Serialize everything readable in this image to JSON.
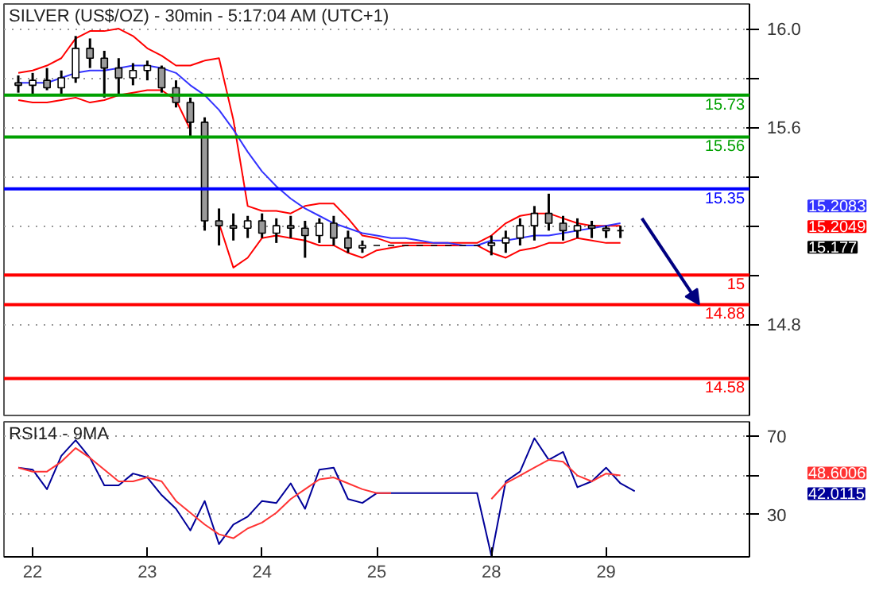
{
  "chart_data": [
    {
      "type": "candlestick",
      "title": "SILVER (US$/OZ) - 30min - 5:17:04 AM (UTC+1)",
      "categories": [
        null,
        null,
        null,
        null,
        null,
        null,
        null,
        null,
        null,
        null,
        null,
        null,
        null,
        null,
        null,
        null,
        null,
        null,
        null,
        null,
        null,
        null,
        null,
        null,
        null,
        null,
        null,
        null,
        null,
        null,
        null,
        null,
        null,
        null,
        null,
        null,
        null,
        null,
        null,
        null,
        null,
        null,
        null,
        null
      ],
      "ohlc": [
        [
          15.78,
          15.81,
          15.74,
          15.77
        ],
        [
          15.77,
          15.82,
          15.73,
          15.79
        ],
        [
          15.79,
          15.84,
          15.75,
          15.76
        ],
        [
          15.76,
          15.83,
          15.73,
          15.8
        ],
        [
          15.8,
          15.97,
          15.78,
          15.92
        ],
        [
          15.92,
          15.96,
          15.84,
          15.88
        ],
        [
          15.88,
          15.91,
          15.72,
          15.84
        ],
        [
          15.84,
          15.88,
          15.73,
          15.8
        ],
        [
          15.8,
          15.86,
          15.77,
          15.83
        ],
        [
          15.83,
          15.87,
          15.79,
          15.85
        ],
        [
          15.84,
          15.85,
          15.74,
          15.76
        ],
        [
          15.76,
          15.79,
          15.68,
          15.7
        ],
        [
          15.7,
          15.72,
          15.56,
          15.62
        ],
        [
          15.62,
          15.64,
          15.18,
          15.22
        ],
        [
          15.22,
          15.27,
          15.12,
          15.2
        ],
        [
          15.2,
          15.25,
          15.14,
          15.19
        ],
        [
          15.19,
          15.24,
          15.15,
          15.22
        ],
        [
          15.22,
          15.25,
          15.15,
          15.17
        ],
        [
          15.17,
          15.23,
          15.13,
          15.2
        ],
        [
          15.2,
          15.24,
          15.15,
          15.19
        ],
        [
          15.19,
          15.22,
          15.07,
          15.16
        ],
        [
          15.16,
          15.23,
          15.13,
          15.21
        ],
        [
          15.21,
          15.24,
          15.12,
          15.15
        ],
        [
          15.15,
          15.18,
          15.09,
          15.11
        ],
        [
          15.11,
          15.14,
          15.09,
          15.12
        ],
        [
          15.12,
          15.12,
          15.12,
          15.12
        ],
        [
          15.12,
          15.12,
          15.12,
          15.12
        ],
        [
          15.12,
          15.12,
          15.12,
          15.12
        ],
        [
          15.12,
          15.12,
          15.12,
          15.12
        ],
        [
          15.12,
          15.12,
          15.12,
          15.12
        ],
        [
          15.12,
          15.12,
          15.12,
          15.12
        ],
        [
          15.12,
          15.12,
          15.12,
          15.12
        ],
        [
          15.12,
          15.12,
          15.12,
          15.12
        ],
        [
          15.12,
          15.16,
          15.08,
          15.13
        ],
        [
          15.13,
          15.18,
          15.09,
          15.15
        ],
        [
          15.15,
          15.23,
          15.12,
          15.2
        ],
        [
          15.2,
          15.28,
          15.14,
          15.25
        ],
        [
          15.25,
          15.33,
          15.18,
          15.21
        ],
        [
          15.21,
          15.24,
          15.14,
          15.18
        ],
        [
          15.18,
          15.23,
          15.15,
          15.2
        ],
        [
          15.2,
          15.22,
          15.15,
          15.19
        ],
        [
          15.19,
          15.2,
          15.15,
          15.18
        ],
        [
          15.18,
          15.2,
          15.15,
          15.18
        ],
        null
      ],
      "color": "#000000",
      "series": [
        {
          "type": "line",
          "color": "#ff0000",
          "values": [
            15.82,
            15.83,
            15.85,
            15.88,
            15.96,
            15.99,
            15.99,
            16.0,
            15.97,
            15.92,
            15.89,
            15.85,
            15.85,
            15.87,
            15.88,
            15.63,
            15.28,
            15.26,
            15.26,
            15.25,
            15.28,
            15.29,
            15.29,
            15.23,
            15.16,
            15.15,
            15.13,
            15.13,
            15.13,
            15.13,
            15.13,
            15.13,
            15.13,
            15.16,
            15.21,
            15.24,
            15.25,
            15.25,
            15.23,
            15.21,
            15.2,
            15.2,
            15.2,
            null
          ]
        },
        {
          "type": "line",
          "color": "#ff0000",
          "values": [
            15.71,
            15.7,
            15.7,
            15.71,
            15.72,
            15.7,
            15.71,
            15.73,
            15.74,
            15.75,
            15.75,
            15.71,
            15.59,
            null,
            15.21,
            15.03,
            15.07,
            15.15,
            15.16,
            15.15,
            15.14,
            15.12,
            15.12,
            15.09,
            15.07,
            15.1,
            15.11,
            15.12,
            15.12,
            15.12,
            15.12,
            15.12,
            15.12,
            15.09,
            15.07,
            15.1,
            15.11,
            15.13,
            15.13,
            15.15,
            15.14,
            15.13,
            15.13,
            null
          ]
        },
        {
          "type": "line",
          "color": "#3333ff",
          "values": [
            15.78,
            15.78,
            15.78,
            15.8,
            15.82,
            15.83,
            15.83,
            15.84,
            15.85,
            15.85,
            15.84,
            15.82,
            15.77,
            15.73,
            15.67,
            15.59,
            15.5,
            15.42,
            15.36,
            15.31,
            15.27,
            15.24,
            15.21,
            15.19,
            15.17,
            15.16,
            15.15,
            15.15,
            15.14,
            15.13,
            15.13,
            15.12,
            15.12,
            15.14,
            15.14,
            15.15,
            15.16,
            15.16,
            15.17,
            15.18,
            15.19,
            15.2,
            15.21,
            null
          ]
        }
      ],
      "ref_lines": [
        {
          "axis": "y",
          "value": 15.73,
          "label": "15.73",
          "color": "#00a000"
        },
        {
          "axis": "y",
          "value": 15.56,
          "label": "15.56",
          "color": "#00a000"
        },
        {
          "axis": "y",
          "value": 15.35,
          "label": "15.35",
          "color": "#0000ff"
        },
        {
          "axis": "y",
          "value": 15,
          "label": "15",
          "color": "#ff0000"
        },
        {
          "axis": "y",
          "value": 14.88,
          "label": "14.88",
          "color": "#ff0000"
        },
        {
          "axis": "y",
          "value": 14.58,
          "label": "14.58",
          "color": "#ff0000"
        }
      ],
      "annotations": [
        "15.2083",
        "15.2049",
        "15.177"
      ],
      "ylim": [
        14.43,
        16.1
      ],
      "yticks": [
        {
          "value": 16.0,
          "label": "16.0"
        },
        {
          "value": 15.8,
          "label": null
        },
        {
          "value": 15.6,
          "label": "15.6"
        },
        {
          "value": 15.4,
          "label": null
        },
        {
          "value": 15.2,
          "label": null
        },
        {
          "value": 15.0,
          "label": null
        },
        {
          "value": 14.8,
          "label": "14.8"
        }
      ],
      "grid": "y",
      "tick_labels": "y"
    },
    {
      "type": "line",
      "title": "RSI14 - 9MA",
      "categories": [
        null,
        "22",
        null,
        null,
        null,
        null,
        null,
        null,
        null,
        "23",
        null,
        null,
        null,
        null,
        null,
        null,
        null,
        "24",
        null,
        null,
        null,
        null,
        null,
        null,
        null,
        "25",
        null,
        null,
        null,
        null,
        null,
        null,
        null,
        "28",
        null,
        null,
        null,
        null,
        null,
        null,
        null,
        "29",
        null,
        null
      ],
      "series": [
        {
          "color": "#000099",
          "values": [
            54,
            53,
            43,
            60,
            68,
            59,
            45,
            45,
            51,
            49,
            40,
            33,
            22,
            37,
            15,
            25,
            29,
            37,
            36,
            46,
            33,
            53,
            54,
            38,
            36,
            41,
            41,
            41,
            41,
            41,
            41,
            41,
            41,
            9,
            47,
            52,
            69,
            58,
            62,
            44,
            47,
            54,
            46,
            42
          ]
        },
        {
          "color": "#ff3333",
          "values": [
            54,
            52,
            52,
            57,
            64,
            59,
            53,
            47,
            47,
            49,
            47,
            37,
            31,
            25,
            20,
            18,
            23,
            26,
            31,
            38,
            43,
            48,
            49,
            46,
            43,
            41,
            41,
            null,
            null,
            null,
            null,
            null,
            null,
            38,
            46,
            50,
            54,
            58,
            57,
            50,
            47,
            51,
            50,
            null
          ]
        }
      ],
      "annotations": [
        "48.6006",
        "42.0115"
      ],
      "ylim": [
        8.5,
        77.4
      ],
      "yticks": [
        70,
        {
          "value": 50,
          "label": null
        },
        30
      ],
      "grid": "y"
    }
  ]
}
